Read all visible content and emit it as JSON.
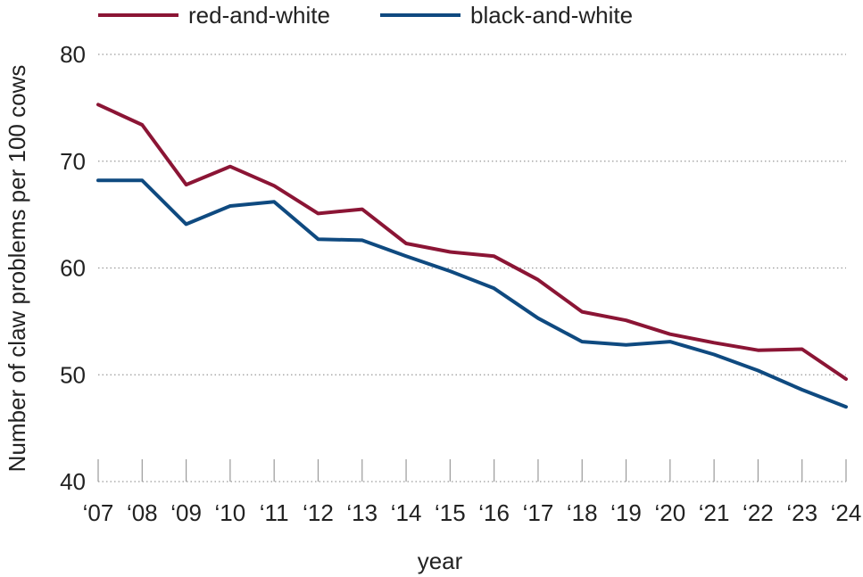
{
  "chart_data": {
    "type": "line",
    "title": "",
    "xlabel": "year",
    "ylabel": "Number of claw problems per 100 cows",
    "categories": [
      "‘07",
      "‘08",
      "‘09",
      "‘10",
      "‘11",
      "‘12",
      "‘13",
      "‘14",
      "‘15",
      "‘16",
      "‘17",
      "‘18",
      "‘19",
      "‘20",
      "‘21",
      "‘22",
      "‘23",
      "‘24"
    ],
    "ylim": [
      40,
      80
    ],
    "yticks": [
      40,
      50,
      60,
      70,
      80
    ],
    "grid": "horizontal dotted",
    "legend_position": "top",
    "series": [
      {
        "name": "red-and-white",
        "color": "#8b1535",
        "values": [
          75.3,
          73.4,
          67.8,
          69.5,
          67.7,
          65.1,
          65.5,
          62.3,
          61.5,
          61.1,
          58.9,
          55.9,
          55.1,
          53.8,
          53.0,
          52.3,
          52.4,
          49.6
        ]
      },
      {
        "name": "black-and-white",
        "color": "#0f4a80",
        "values": [
          68.2,
          68.2,
          64.1,
          65.8,
          66.2,
          62.7,
          62.6,
          61.1,
          59.7,
          58.1,
          55.3,
          53.1,
          52.8,
          53.1,
          51.9,
          50.4,
          48.6,
          47.0
        ]
      }
    ]
  }
}
